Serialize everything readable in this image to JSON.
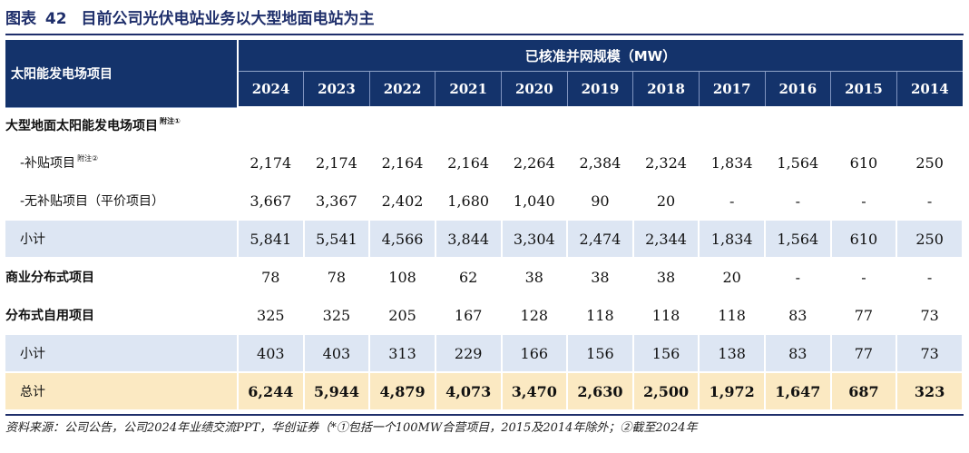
{
  "title": {
    "prefix": "图表",
    "number": "42",
    "text": "目前公司光伏电站业务以大型地面电站为主"
  },
  "header": {
    "row_label": "太阳能发电场项目",
    "group_label": "已核准并网规模（MW）",
    "years": [
      "2024",
      "2023",
      "2022",
      "2021",
      "2020",
      "2019",
      "2018",
      "2017",
      "2016",
      "2015",
      "2014"
    ]
  },
  "rows": [
    {
      "label": "大型地面太阳能发电场项目",
      "note": "附注①",
      "type": "section",
      "values": [
        "",
        "",
        "",
        "",
        "",
        "",
        "",
        "",
        "",
        "",
        ""
      ]
    },
    {
      "label": "-补贴项目",
      "note": "附注②",
      "type": "indent",
      "values": [
        "2,174",
        "2,174",
        "2,164",
        "2,164",
        "2,264",
        "2,384",
        "2,324",
        "1,834",
        "1,564",
        "610",
        "250"
      ]
    },
    {
      "label": "-无补贴项目（平价项目）",
      "note": "",
      "type": "indent",
      "values": [
        "3,667",
        "3,367",
        "2,402",
        "1,680",
        "1,040",
        "90",
        "20",
        "-",
        "-",
        "-",
        "-"
      ]
    },
    {
      "label": "小计",
      "note": "",
      "type": "subtotal",
      "values": [
        "5,841",
        "5,541",
        "4,566",
        "3,844",
        "3,304",
        "2,474",
        "2,344",
        "1,834",
        "1,564",
        "610",
        "250"
      ]
    },
    {
      "label": "商业分布式项目",
      "note": "",
      "type": "bold",
      "values": [
        "78",
        "78",
        "108",
        "62",
        "38",
        "38",
        "38",
        "20",
        "-",
        "-",
        "-"
      ]
    },
    {
      "label": "分布式自用项目",
      "note": "",
      "type": "bold",
      "values": [
        "325",
        "325",
        "205",
        "167",
        "128",
        "118",
        "118",
        "118",
        "83",
        "77",
        "73"
      ]
    },
    {
      "label": "小计",
      "note": "",
      "type": "subtotal",
      "values": [
        "403",
        "403",
        "313",
        "229",
        "166",
        "156",
        "156",
        "138",
        "83",
        "77",
        "73"
      ]
    },
    {
      "label": "总计",
      "note": "",
      "type": "total",
      "values": [
        "6,244",
        "5,944",
        "4,879",
        "4,073",
        "3,470",
        "2,630",
        "2,500",
        "1,972",
        "1,647",
        "687",
        "323"
      ]
    }
  ],
  "footer": "资料来源：公司公告，公司2024年业绩交流PPT，华创证券（*①包括一个100MW合营项目，2015及2014年除外；②截至2024年"
}
